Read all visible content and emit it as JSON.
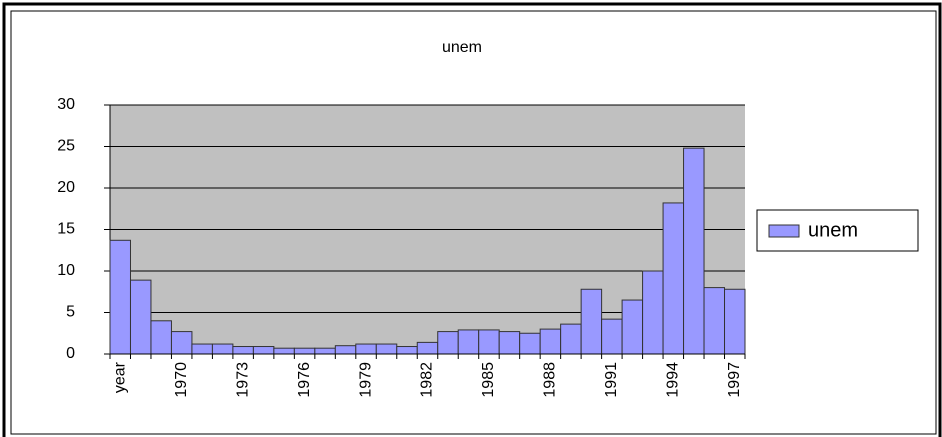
{
  "chart_data": {
    "type": "bar",
    "title": "unem",
    "categories": [
      "year",
      null,
      null,
      "1970",
      null,
      null,
      "1973",
      null,
      null,
      "1976",
      null,
      null,
      "1979",
      null,
      null,
      "1982",
      null,
      null,
      "1985",
      null,
      null,
      "1988",
      null,
      null,
      "1991",
      null,
      null,
      "1994",
      null,
      null,
      "1997"
    ],
    "series": [
      {
        "name": "unem",
        "color": "#9999ff",
        "values": [
          13.7,
          8.9,
          4.0,
          2.7,
          1.2,
          1.2,
          0.9,
          0.9,
          0.7,
          0.7,
          0.7,
          1.0,
          1.2,
          1.2,
          0.9,
          1.4,
          2.7,
          2.9,
          2.9,
          2.7,
          2.5,
          3.0,
          3.6,
          7.8,
          4.2,
          6.5,
          10.0,
          18.2,
          24.8,
          8.0,
          7.8
        ]
      }
    ],
    "ylim": [
      0,
      30
    ],
    "yticks": [
      0,
      5,
      10,
      15,
      20,
      25,
      30
    ],
    "grid": true,
    "legend": "right"
  }
}
